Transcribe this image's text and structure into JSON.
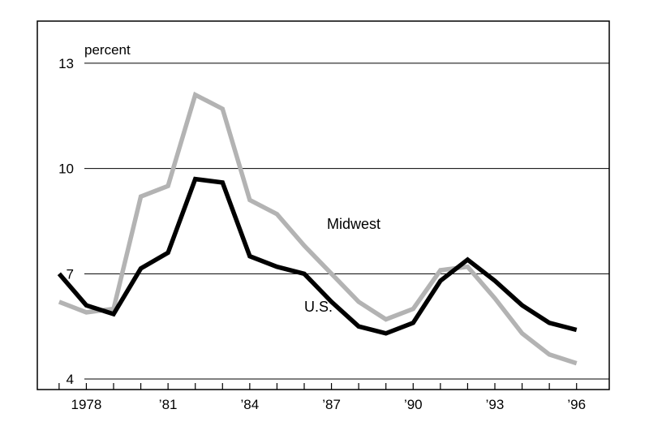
{
  "chart_data": {
    "type": "line",
    "title": "",
    "xlabel": "",
    "ylabel": "percent",
    "x": [
      1977,
      1978,
      1979,
      1980,
      1981,
      1982,
      1983,
      1984,
      1985,
      1986,
      1987,
      1988,
      1989,
      1990,
      1991,
      1992,
      1993,
      1994,
      1995,
      1996
    ],
    "xlim": [
      1976.2,
      1997.2
    ],
    "ylim": [
      3.7,
      14.2
    ],
    "x_ticks": [
      {
        "value": 1978,
        "label": "1978"
      },
      {
        "value": 1981,
        "label": "’81"
      },
      {
        "value": 1984,
        "label": "’84"
      },
      {
        "value": 1987,
        "label": "’87"
      },
      {
        "value": 1990,
        "label": "’90"
      },
      {
        "value": 1993,
        "label": "’93"
      },
      {
        "value": 1996,
        "label": "’96"
      }
    ],
    "y_ticks": [
      {
        "value": 4,
        "label": "4"
      },
      {
        "value": 7,
        "label": "7"
      },
      {
        "value": 10,
        "label": "10"
      },
      {
        "value": 13,
        "label": "13"
      }
    ],
    "grid": true,
    "series": [
      {
        "name": "Midwest",
        "color": "#b3b3b3",
        "values": [
          6.2,
          5.9,
          6.0,
          9.2,
          9.5,
          12.1,
          11.7,
          9.1,
          8.7,
          7.8,
          7.0,
          6.2,
          5.7,
          6.0,
          7.1,
          7.2,
          6.3,
          5.3,
          4.7,
          4.45
        ]
      },
      {
        "name": "U.S.",
        "color": "#000000",
        "values": [
          7.0,
          6.1,
          5.85,
          7.15,
          7.6,
          9.7,
          9.6,
          7.5,
          7.2,
          7.0,
          6.2,
          5.5,
          5.3,
          5.6,
          6.8,
          7.4,
          6.8,
          6.1,
          5.6,
          5.4
        ]
      }
    ]
  }
}
